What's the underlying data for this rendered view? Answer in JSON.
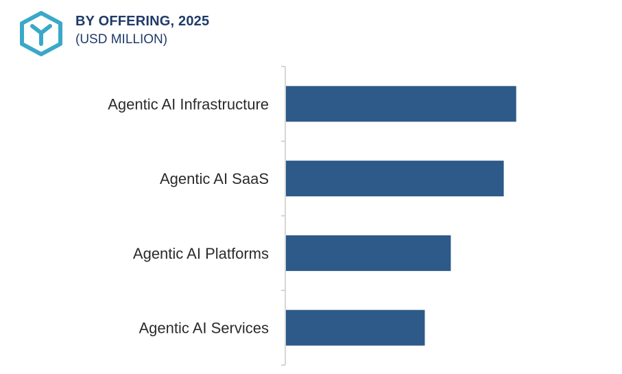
{
  "header": {
    "title": "BY OFFERING, 2025",
    "subtitle": "(USD MILLION)",
    "logo_icon": "cube-y-logo-icon"
  },
  "colors": {
    "bar": "#2d5a88",
    "title": "#1f3a68",
    "logo": "#3aa8c9",
    "axis": "#c8c8c8"
  },
  "chart_data": {
    "type": "bar",
    "orientation": "horizontal",
    "title": "BY OFFERING, 2025",
    "subtitle": "(USD MILLION)",
    "categories": [
      "Agentic AI Infrastructure",
      "Agentic AI SaaS",
      "Agentic AI Platforms",
      "Agentic AI Services"
    ],
    "values": [
      100,
      94.6,
      71.6,
      60.3
    ],
    "xlim": [
      0,
      140
    ],
    "grid": false,
    "legend": "none"
  }
}
